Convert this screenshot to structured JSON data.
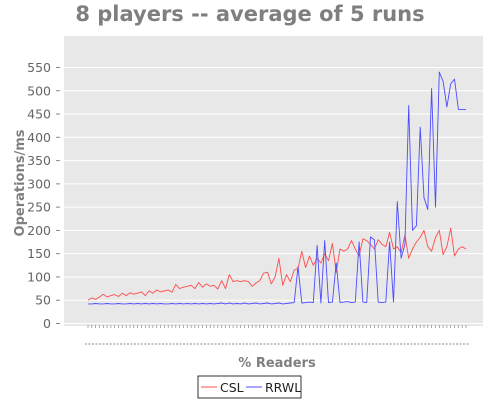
{
  "chart_data": {
    "type": "line",
    "title": "8 players -- average of 5 runs",
    "xlabel": "% Readers",
    "ylabel": "Operations/ms",
    "ylim": [
      0,
      560
    ],
    "yticks": [
      0,
      50,
      100,
      150,
      200,
      250,
      300,
      350,
      400,
      450,
      500,
      550
    ],
    "grid": true,
    "legend_position": "bottom-center",
    "x_tick_labels_visible": false,
    "x": [
      0,
      1,
      2,
      3,
      4,
      5,
      6,
      7,
      8,
      9,
      10,
      11,
      12,
      13,
      14,
      15,
      16,
      17,
      18,
      19,
      20,
      21,
      22,
      23,
      24,
      25,
      26,
      27,
      28,
      29,
      30,
      31,
      32,
      33,
      34,
      35,
      36,
      37,
      38,
      39,
      40,
      41,
      42,
      43,
      44,
      45,
      46,
      47,
      48,
      49,
      50,
      51,
      52,
      53,
      54,
      55,
      56,
      57,
      58,
      59,
      60,
      61,
      62,
      63,
      64,
      65,
      66,
      67,
      68,
      69,
      70,
      71,
      72,
      73,
      74,
      75,
      76,
      77,
      78,
      79,
      80,
      81,
      82,
      83,
      84,
      85,
      86,
      87,
      88,
      89,
      90,
      91,
      92,
      93,
      94,
      95,
      96,
      97,
      98,
      99
    ],
    "series": [
      {
        "name": "CSL",
        "color": "#ff4c4c",
        "values": [
          50,
          55,
          52,
          57,
          63,
          57,
          60,
          62,
          58,
          65,
          60,
          66,
          63,
          65,
          68,
          60,
          70,
          65,
          72,
          68,
          70,
          72,
          67,
          84,
          75,
          78,
          80,
          82,
          75,
          88,
          78,
          85,
          80,
          82,
          74,
          92,
          75,
          105,
          90,
          92,
          90,
          92,
          90,
          80,
          87,
          92,
          108,
          110,
          85,
          100,
          140,
          82,
          105,
          90,
          115,
          118,
          155,
          120,
          145,
          125,
          140,
          130,
          150,
          135,
          172,
          110,
          160,
          155,
          160,
          178,
          160,
          145,
          182,
          178,
          170,
          160,
          180,
          170,
          165,
          196,
          160,
          165,
          152,
          190,
          140,
          160,
          175,
          185,
          200,
          165,
          155,
          185,
          200,
          148,
          165,
          205,
          145,
          160,
          165,
          160
        ]
      },
      {
        "name": "RRWL",
        "color": "#4c4cff",
        "values": [
          42,
          42,
          43,
          42,
          42,
          43,
          42,
          42,
          43,
          42,
          42,
          43,
          42,
          43,
          42,
          43,
          42,
          43,
          42,
          43,
          42,
          42,
          43,
          42,
          43,
          42,
          43,
          42,
          43,
          42,
          43,
          42,
          43,
          42,
          43,
          44,
          42,
          44,
          42,
          43,
          42,
          44,
          42,
          43,
          44,
          42,
          43,
          44,
          42,
          43,
          44,
          42,
          43,
          44,
          45,
          122,
          44,
          45,
          46,
          45,
          168,
          44,
          178,
          45,
          46,
          130,
          45,
          46,
          47,
          45,
          46,
          175,
          46,
          45,
          186,
          180,
          46,
          45,
          46,
          175,
          46,
          262,
          140,
          170,
          468,
          200,
          210,
          422,
          270,
          245,
          505,
          250,
          540,
          520,
          465,
          515,
          525,
          460,
          460,
          460
        ]
      }
    ]
  }
}
